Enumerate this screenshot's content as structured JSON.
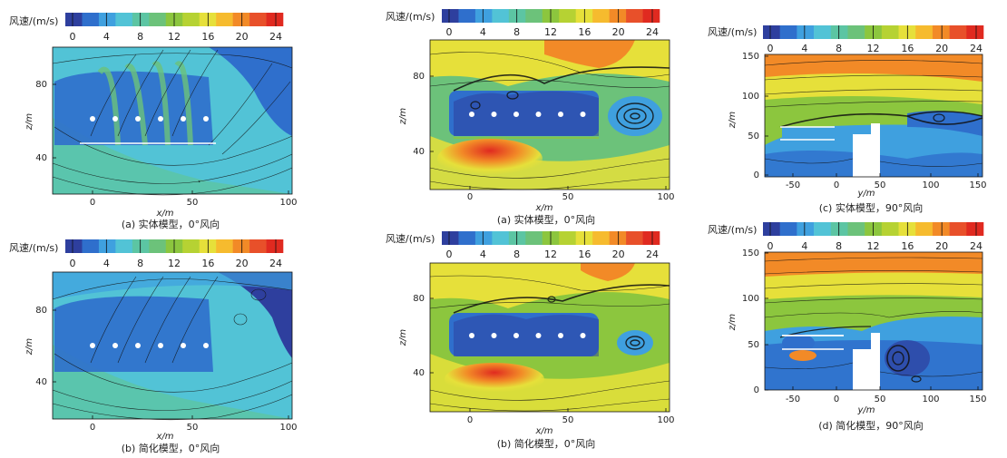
{
  "colorbar": {
    "label": "风速/(m/s)",
    "ticks": [
      "0",
      "4",
      "8",
      "12",
      "16",
      "20",
      "24"
    ],
    "colors": [
      "#2e3f9e",
      "#2f6fcc",
      "#3fa0df",
      "#52c3d6",
      "#5cc5a3",
      "#6cc27a",
      "#8cc63e",
      "#b6d233",
      "#e6e03a",
      "#f6bb2e",
      "#f28a27",
      "#e8502a",
      "#e02a20"
    ]
  },
  "panels": [
    {
      "id": "a1",
      "caption": "(a) 实体模型，0°风向",
      "xlabel": "x/m",
      "ylabel": "z/m",
      "xticks": [
        "0",
        "50",
        "100"
      ],
      "yticks": [
        "40",
        "80"
      ]
    },
    {
      "id": "b1",
      "caption": "(b) 简化模型，0°风向",
      "xlabel": "x/m",
      "ylabel": "z/m",
      "xticks": [
        "0",
        "50",
        "100"
      ],
      "yticks": [
        "40",
        "80"
      ]
    },
    {
      "id": "a2",
      "caption": "(a) 实体模型，0°风向",
      "xlabel": "x/m",
      "ylabel": "z/m",
      "xticks": [
        "0",
        "50",
        "100"
      ],
      "yticks": [
        "40",
        "80"
      ]
    },
    {
      "id": "b2",
      "caption": "(b) 简化模型，0°风向",
      "xlabel": "x/m",
      "ylabel": "z/m",
      "xticks": [
        "0",
        "50",
        "100"
      ],
      "yticks": [
        "40",
        "80"
      ]
    },
    {
      "id": "c",
      "caption": "(c) 实体模型，90°风向",
      "xlabel": "y/m",
      "ylabel": "z/m",
      "xticks": [
        "-50",
        "0",
        "50",
        "100",
        "150"
      ],
      "yticks": [
        "0",
        "50",
        "100",
        "150"
      ]
    },
    {
      "id": "d",
      "caption": "(d) 简化模型，90°风向",
      "xlabel": "y/m",
      "ylabel": "z/m",
      "xticks": [
        "-50",
        "0",
        "50",
        "100",
        "150"
      ],
      "yticks": [
        "0",
        "50",
        "100",
        "150"
      ]
    }
  ]
}
